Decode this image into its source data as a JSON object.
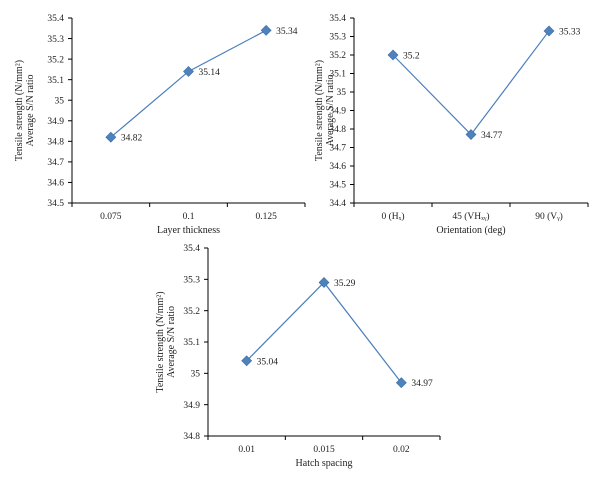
{
  "colors": {
    "series": "#4a7ebb",
    "marker": "#4f81bd",
    "axis": "#000000"
  },
  "chart_data": [
    {
      "type": "line",
      "xlabel": "Layer thickness",
      "ylabel_lines": [
        "Tensile strength (N/mm²)",
        "Average S/N ratio"
      ],
      "categories": [
        "0.075",
        "0.1",
        "0.125"
      ],
      "values": [
        34.82,
        35.14,
        35.34
      ],
      "value_labels": [
        "34.82",
        "35.14",
        "35.34"
      ],
      "ylim": [
        34.5,
        35.4
      ],
      "yticks": [
        "34.5",
        "34.6",
        "34.7",
        "34.8",
        "34.9",
        "35",
        "35.1",
        "35.2",
        "35.3",
        "35.4"
      ],
      "grid": false
    },
    {
      "type": "line",
      "xlabel": "Orientation (deg)",
      "ylabel_lines": [
        "Tensile strength (N/mm²)",
        "Average S/N ratio"
      ],
      "categories": [
        "0 (Hₓ)",
        "45 (VHₓᵧ)",
        "90 (Vᵧ)"
      ],
      "values": [
        35.2,
        34.77,
        35.33
      ],
      "value_labels": [
        "35.2",
        "34.77",
        "35.33"
      ],
      "ylim": [
        34.4,
        35.4
      ],
      "yticks": [
        "34.4",
        "34.5",
        "34.6",
        "34.7",
        "34.8",
        "34.9",
        "35",
        "35.1",
        "35.2",
        "35.3",
        "35.4"
      ],
      "grid": false
    },
    {
      "type": "line",
      "xlabel": "Hatch spacing",
      "ylabel_lines": [
        "Tensile strength (N/mm²)",
        "Average S/N ratio"
      ],
      "categories": [
        "0.01",
        "0.015",
        "0.02"
      ],
      "values": [
        35.04,
        35.29,
        34.97
      ],
      "value_labels": [
        "35.04",
        "35.29",
        "34.97"
      ],
      "ylim": [
        34.8,
        35.4
      ],
      "yticks": [
        "34.8",
        "34.9",
        "35",
        "35.1",
        "35.2",
        "35.3",
        "35.4"
      ],
      "grid": false
    }
  ]
}
